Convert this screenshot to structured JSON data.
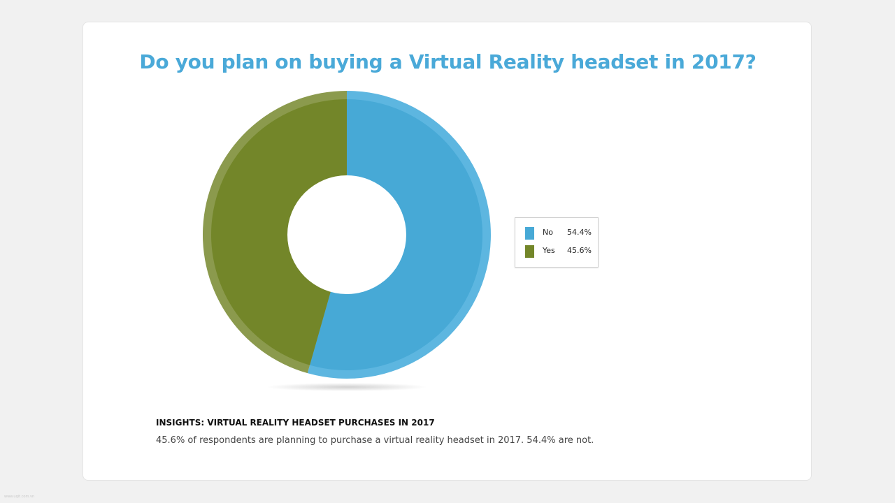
{
  "page": {
    "background": "#f1f1f1",
    "watermark": "www.uqit.com.vn"
  },
  "chart_data": {
    "type": "pie",
    "variant": "donut",
    "title": "Do you plan on buying a Virtual Reality headset in 2017?",
    "start_angle_deg": 0,
    "direction": "clockwise",
    "series": [
      {
        "name": "No",
        "value": 54.4,
        "label": "54.4%",
        "color": "#47a9d6",
        "rim_color": "#5db6e0"
      },
      {
        "name": "Yes",
        "value": 45.6,
        "label": "45.6%",
        "color": "#738629",
        "rim_color": "#8b9a4d"
      }
    ],
    "legend": {
      "placement": "right",
      "bordered": true
    }
  },
  "insights": {
    "heading": "INSIGHTS: VIRTUAL REALITY HEADSET PURCHASES IN 2017",
    "text": "45.6% of respondents are planning to purchase a virtual reality headset in 2017. 54.4% are not."
  }
}
